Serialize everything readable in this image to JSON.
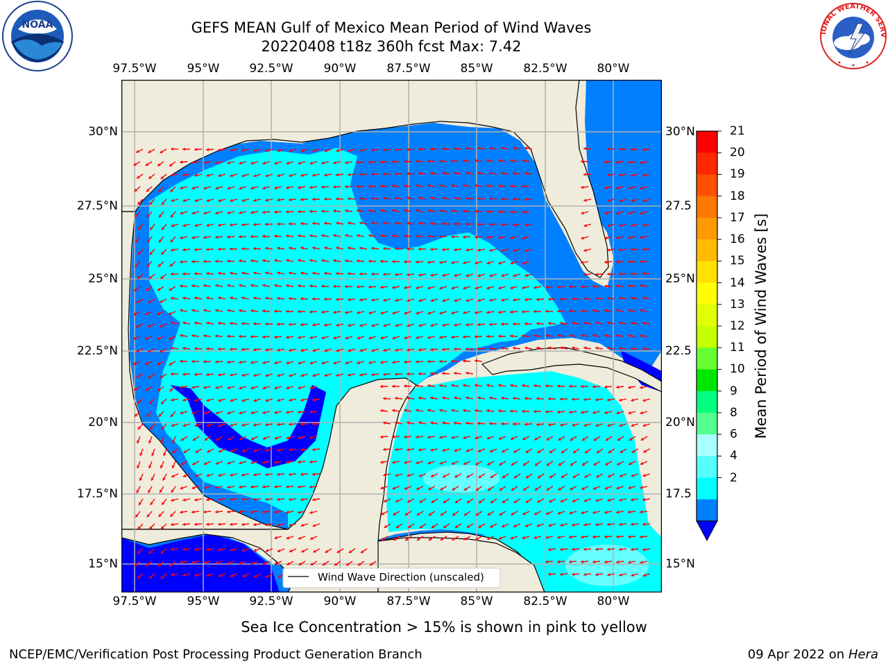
{
  "title": {
    "line1": "GEFS MEAN Gulf of Mexico Mean Period of Wind Waves",
    "line2": "20220408 t18z 360h fcst   Max: 7.42"
  },
  "map": {
    "lon_ticks": [
      "97.5°W",
      "95°W",
      "92.5°W",
      "90°W",
      "87.5°W",
      "85°W",
      "82.5°W",
      "80°W"
    ],
    "lat_ticks_left": [
      "30°N",
      "27.5°N",
      "25°N",
      "22.5°N",
      "20°N",
      "17.5°N",
      "15°N"
    ],
    "lat_ticks_right": [
      "30°N",
      "27.5",
      "25°N",
      "22.5",
      "20°N",
      "17.5",
      "15°N"
    ],
    "legend_label": "Wind Wave Direction (unscaled)",
    "colors": {
      "land": "#efecdc",
      "ocean_light": "#00ffff",
      "ocean_mid": "#0080ff",
      "ocean_dark": "#0000ff",
      "ocean_pale": "#66ffff",
      "arrow": "#ff0000",
      "grid": "#b0b0b0"
    }
  },
  "colorbar": {
    "title": "Mean Period of Wind Waves [s]",
    "labels": [
      "21",
      "20",
      "19",
      "18",
      "17",
      "16",
      "15",
      "14",
      "13",
      "12",
      "11",
      "10",
      "9",
      "8",
      "6",
      "4",
      "2"
    ],
    "colors": [
      "#ff0000",
      "#ff2800",
      "#ff5000",
      "#ff7800",
      "#ff9900",
      "#ffbb00",
      "#ffe100",
      "#ffff00",
      "#e1ff00",
      "#c3ff00",
      "#66ff33",
      "#00e600",
      "#00ff80",
      "#55ff8e",
      "#a8ffff",
      "#55ffff",
      "#00ffff",
      "#0080ff"
    ],
    "extend_color": "#0000ff"
  },
  "bottom_note": "Sea Ice Concentration > 15% is shown in pink to yellow",
  "footer": {
    "left": "NCEP/EMC/Verification Post Processing Product Generation Branch",
    "right_date": "09 Apr 2022 on ",
    "right_host": "Hera"
  },
  "logos": {
    "noaa_text": "NOAA",
    "nws_text": "NATIONAL WEATHER SERVICE"
  }
}
